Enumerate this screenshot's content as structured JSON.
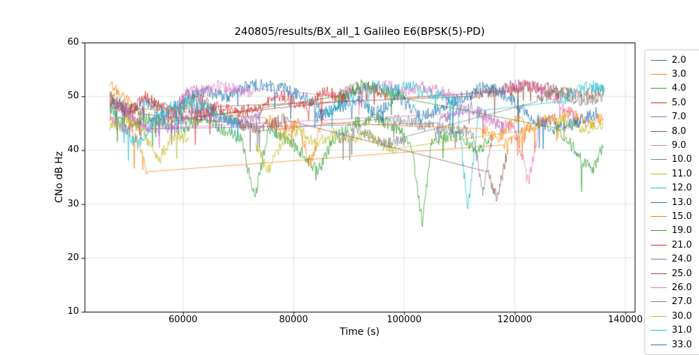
{
  "chart_data": {
    "type": "line",
    "title": "240805/results/BX_all_1 Galileo E6(BPSK(5)-PD)",
    "xlabel": "Time (s)",
    "ylabel": "CNo dB Hz",
    "xlim": [
      42200,
      141700
    ],
    "ylim": [
      10,
      60
    ],
    "xticks": [
      60000,
      80000,
      100000,
      120000,
      140000
    ],
    "yticks": [
      10,
      20,
      30,
      40,
      50,
      60
    ],
    "grid": true,
    "grid_color": "#d9d9d9",
    "axes_color": "#000000",
    "noise_amplitude": 1.2,
    "legend_position": "right-outside",
    "legend_border_color": "#cccccc",
    "legend_last_entry_clipped": true,
    "series": [
      {
        "name": "2.0",
        "color": "#1f77b4",
        "points": [
          [
            46800,
            50
          ],
          [
            50000,
            47
          ],
          [
            53500,
            49
          ],
          [
            57000,
            46
          ],
          [
            60500,
            50
          ],
          [
            64000,
            51
          ],
          [
            68000,
            50
          ],
          [
            72000,
            52
          ],
          [
            76000,
            52
          ],
          [
            80000,
            51
          ],
          [
            83500,
            49
          ],
          [
            86000,
            47
          ]
        ]
      },
      {
        "name": "3.0",
        "color": "#ff7f0e",
        "points": [
          [
            46800,
            51
          ],
          [
            49500,
            47
          ],
          [
            52000,
            41
          ],
          [
            53500,
            36
          ],
          [
            118000,
            41
          ],
          [
            121000,
            43
          ],
          [
            124000,
            45
          ],
          [
            127000,
            46
          ],
          [
            130000,
            47
          ],
          [
            133000,
            45
          ],
          [
            136000,
            46
          ]
        ]
      },
      {
        "name": "4.0",
        "color": "#2ca02c",
        "points": [
          [
            60000,
            44
          ],
          [
            63500,
            46
          ],
          [
            67000,
            44
          ],
          [
            70500,
            42
          ],
          [
            73000,
            31
          ],
          [
            75500,
            44
          ],
          [
            79000,
            42
          ],
          [
            82000,
            39
          ],
          [
            84500,
            36
          ],
          [
            87000,
            42
          ],
          [
            91000,
            45
          ],
          [
            95000,
            46
          ],
          [
            99000,
            44
          ],
          [
            101500,
            40
          ],
          [
            103300,
            26
          ],
          [
            105000,
            42
          ],
          [
            109000,
            43
          ],
          [
            113000,
            40
          ],
          [
            116000,
            42
          ]
        ]
      },
      {
        "name": "5.0",
        "color": "#d62728",
        "points": [
          [
            46800,
            49
          ],
          [
            50000,
            47
          ],
          [
            53500,
            50
          ],
          [
            56500,
            48
          ],
          [
            60000,
            46
          ],
          [
            88000,
            49
          ],
          [
            91000,
            51
          ],
          [
            94000,
            52
          ],
          [
            97000,
            50
          ],
          [
            119000,
            51
          ],
          [
            122000,
            52
          ],
          [
            125000,
            51
          ],
          [
            128000,
            50
          ]
        ]
      },
      {
        "name": "7.0",
        "color": "#9467bd",
        "points": [
          [
            46800,
            50
          ],
          [
            49500,
            47
          ],
          [
            52500,
            44
          ],
          [
            106000,
            45
          ],
          [
            109000,
            47
          ],
          [
            112000,
            48
          ],
          [
            115000,
            46
          ],
          [
            118000,
            44
          ]
        ]
      },
      {
        "name": "8.0",
        "color": "#8c564b",
        "points": [
          [
            54000,
            49
          ],
          [
            58000,
            47
          ],
          [
            62000,
            50
          ],
          [
            66000,
            48
          ],
          [
            112000,
            50
          ],
          [
            116000,
            51
          ],
          [
            120000,
            52
          ],
          [
            124000,
            52
          ],
          [
            128000,
            51
          ],
          [
            132000,
            50
          ],
          [
            136000,
            51
          ]
        ]
      },
      {
        "name": "9.0",
        "color": "#e377c2",
        "points": [
          [
            49000,
            48
          ],
          [
            52000,
            45
          ],
          [
            55000,
            44
          ],
          [
            58000,
            47
          ],
          [
            61000,
            51
          ],
          [
            64000,
            51
          ],
          [
            67000,
            52
          ],
          [
            70000,
            51
          ],
          [
            73000,
            51
          ],
          [
            88000,
            50
          ],
          [
            91000,
            52
          ],
          [
            94000,
            51
          ],
          [
            97000,
            52
          ],
          [
            100000,
            51
          ],
          [
            103000,
            52
          ],
          [
            106000,
            51
          ],
          [
            109000,
            50
          ],
          [
            117000,
            51
          ],
          [
            120000,
            52
          ],
          [
            123000,
            52
          ],
          [
            126000,
            51
          ],
          [
            129000,
            48
          ],
          [
            132000,
            45
          ]
        ]
      },
      {
        "name": "10.0",
        "color": "#7f7f7f",
        "points": [
          [
            58000,
            46
          ],
          [
            62000,
            48
          ],
          [
            66000,
            47
          ],
          [
            70000,
            45
          ],
          [
            74000,
            44
          ],
          [
            98000,
            46
          ],
          [
            102000,
            45
          ],
          [
            106000,
            44
          ],
          [
            110000,
            44
          ],
          [
            112500,
            43
          ],
          [
            114200,
            32
          ],
          [
            116000,
            43
          ]
        ]
      },
      {
        "name": "11.0",
        "color": "#bcbd22",
        "points": [
          [
            73000,
            41
          ],
          [
            75500,
            36
          ],
          [
            78000,
            42
          ],
          [
            81000,
            44
          ],
          [
            84000,
            41
          ],
          [
            87000,
            43
          ],
          [
            90000,
            42
          ],
          [
            93000,
            43
          ],
          [
            96000,
            41
          ],
          [
            99000,
            40
          ],
          [
            124000,
            44
          ],
          [
            127000,
            46
          ],
          [
            130000,
            45
          ],
          [
            133000,
            44
          ],
          [
            136000,
            45
          ]
        ]
      },
      {
        "name": "12.0",
        "color": "#17becf",
        "points": [
          [
            86000,
            47
          ],
          [
            89000,
            49
          ],
          [
            92000,
            51
          ],
          [
            95000,
            52
          ],
          [
            98000,
            51
          ],
          [
            101000,
            52
          ],
          [
            104000,
            51
          ],
          [
            107000,
            50
          ],
          [
            109500,
            49
          ],
          [
            111500,
            29
          ],
          [
            113500,
            47
          ],
          [
            128000,
            49
          ],
          [
            131000,
            51
          ],
          [
            134000,
            52
          ],
          [
            136200,
            51
          ]
        ]
      },
      {
        "name": "13.0",
        "color": "#1f77b4",
        "points": [
          [
            95000,
            47
          ],
          [
            99000,
            50
          ],
          [
            103000,
            46
          ],
          [
            107000,
            48
          ],
          [
            111000,
            50
          ],
          [
            115000,
            52
          ],
          [
            119000,
            50
          ],
          [
            123000,
            46
          ],
          [
            127000,
            44
          ],
          [
            131000,
            45
          ],
          [
            135000,
            47
          ]
        ]
      },
      {
        "name": "15.0",
        "color": "#ff7f0e",
        "points": [
          [
            46800,
            52
          ],
          [
            49000,
            50
          ],
          [
            51500,
            48
          ],
          [
            75000,
            46
          ],
          [
            78000,
            44
          ],
          [
            81000,
            45
          ],
          [
            83000,
            37
          ],
          [
            85000,
            45
          ],
          [
            114000,
            44
          ],
          [
            117000,
            42
          ],
          [
            120000,
            46
          ],
          [
            123000,
            44
          ]
        ]
      },
      {
        "name": "19.0",
        "color": "#2ca02c",
        "points": [
          [
            46800,
            48
          ],
          [
            50000,
            44
          ],
          [
            54000,
            46
          ],
          [
            58000,
            45
          ],
          [
            88000,
            50
          ],
          [
            92000,
            52
          ],
          [
            96000,
            51
          ],
          [
            100000,
            50
          ],
          [
            128000,
            44
          ],
          [
            131000,
            40
          ],
          [
            134000,
            36
          ],
          [
            136000,
            41
          ]
        ]
      },
      {
        "name": "21.0",
        "color": "#d62728",
        "points": [
          [
            62000,
            46
          ],
          [
            66000,
            48
          ],
          [
            70000,
            47
          ],
          [
            74000,
            48
          ],
          [
            78000,
            50
          ],
          [
            82000,
            48
          ],
          [
            86000,
            51
          ],
          [
            90000,
            49
          ]
        ]
      },
      {
        "name": "24.0",
        "color": "#9467bd",
        "points": [
          [
            54000,
            46
          ],
          [
            58000,
            44
          ],
          [
            62000,
            47
          ],
          [
            66000,
            46
          ],
          [
            70000,
            45
          ],
          [
            74000,
            46
          ]
        ]
      },
      {
        "name": "25.0",
        "color": "#8c564b",
        "points": [
          [
            46800,
            49
          ],
          [
            50000,
            48
          ],
          [
            53000,
            47
          ],
          [
            70000,
            45
          ],
          [
            73000,
            44
          ],
          [
            76000,
            45
          ],
          [
            79000,
            46
          ],
          [
            115000,
            36
          ],
          [
            116800,
            31
          ],
          [
            118500,
            39
          ]
        ]
      },
      {
        "name": "26.0",
        "color": "#e377c2",
        "points": [
          [
            46800,
            46
          ],
          [
            49500,
            44
          ],
          [
            52500,
            45
          ],
          [
            55000,
            44
          ],
          [
            113000,
            47
          ],
          [
            117000,
            45
          ],
          [
            120000,
            44
          ],
          [
            122500,
            34
          ],
          [
            124500,
            45
          ],
          [
            127000,
            46
          ]
        ]
      },
      {
        "name": "27.0",
        "color": "#7f7f7f",
        "points": [
          [
            88000,
            42
          ],
          [
            92000,
            44
          ],
          [
            96000,
            41
          ],
          [
            100000,
            42
          ],
          [
            124000,
            49
          ],
          [
            127000,
            51
          ],
          [
            130000,
            50
          ],
          [
            133000,
            49
          ],
          [
            136000,
            50
          ]
        ]
      },
      {
        "name": "30.0",
        "color": "#bcbd22",
        "points": [
          [
            46800,
            44
          ],
          [
            49500,
            46
          ],
          [
            52500,
            44
          ],
          [
            55500,
            38
          ],
          [
            58500,
            43
          ],
          [
            61000,
            42
          ]
        ]
      },
      {
        "name": "31.0",
        "color": "#17becf",
        "points": [
          [
            46800,
            48
          ],
          [
            50000,
            43
          ],
          [
            52000,
            41
          ],
          [
            55000,
            46
          ],
          [
            58000,
            48
          ],
          [
            61000,
            49
          ],
          [
            64000,
            48
          ],
          [
            67000,
            46
          ],
          [
            70000,
            45
          ]
        ]
      },
      {
        "name": "33.0",
        "color": "#1f77b4",
        "points": [
          [
            84000,
            46
          ],
          [
            88000,
            48
          ],
          [
            92000,
            49
          ],
          [
            96000,
            46
          ]
        ]
      }
    ]
  }
}
